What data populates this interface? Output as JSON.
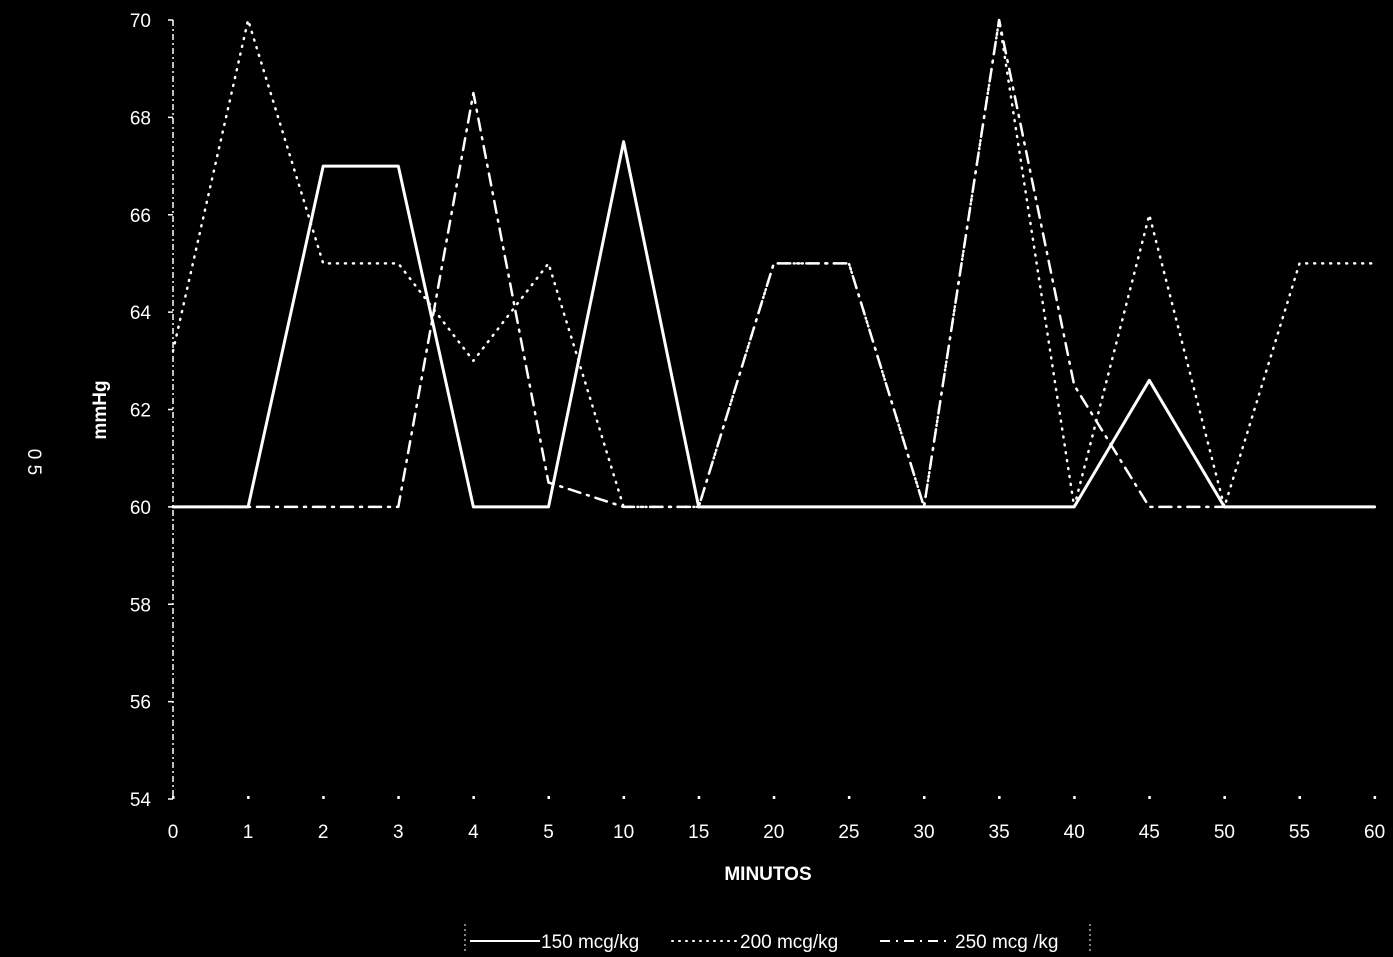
{
  "chart_data": {
    "type": "line",
    "title": "",
    "side_label": "0 5",
    "xlabel": "MINUTOS",
    "ylabel": "mmHg",
    "categories": [
      "0",
      "1",
      "2",
      "3",
      "4",
      "5",
      "10",
      "15",
      "20",
      "25",
      "30",
      "35",
      "40",
      "45",
      "50",
      "55",
      "60"
    ],
    "yticks": [
      "54",
      "56",
      "58",
      "60",
      "62",
      "64",
      "66",
      "68",
      "70"
    ],
    "ylim": [
      54,
      70
    ],
    "grid": false,
    "legend_position": "bottom-center",
    "series": [
      {
        "name": "150 mcg/kg",
        "style": "solid",
        "values": [
          60,
          60,
          67,
          67,
          60,
          60,
          67.5,
          60,
          60,
          60,
          60,
          60,
          60,
          62.6,
          60,
          60,
          60
        ]
      },
      {
        "name": "200 mcg/kg",
        "style": "dotted",
        "values": [
          63.2,
          70,
          65,
          65,
          63,
          65,
          60,
          60,
          65,
          65,
          60,
          70,
          60,
          66,
          60,
          65,
          65
        ]
      },
      {
        "name": "250 mcg /kg",
        "style": "dash-dot",
        "values": [
          60,
          60,
          60,
          60,
          68.5,
          60.5,
          60,
          60,
          65,
          65,
          60,
          70,
          62.5,
          60,
          60,
          null,
          null
        ]
      }
    ],
    "colors": {
      "background": "#000000",
      "foreground": "#ffffff"
    }
  }
}
